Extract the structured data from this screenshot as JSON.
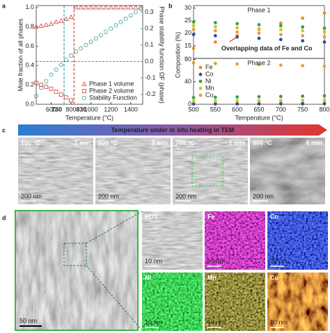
{
  "panel_labels": [
    "a",
    "b",
    "c",
    "d"
  ],
  "chart_data": [
    {
      "type": "scatter",
      "xlabel": "Temperature (°C)",
      "ylabel": "Mole fraction of all phases",
      "y2label": "Phase stability function ΩF (phase)",
      "xlim": [
        450,
        1520
      ],
      "xticks": [
        600,
        800,
        1000,
        1200,
        1400
      ],
      "ylim": [
        0,
        1.02
      ],
      "yticks": [
        {
          "value": 0,
          "label": "0.0"
        },
        0.2,
        0.4,
        0.6,
        0.8,
        {
          "value": 1,
          "label": "1.0"
        }
      ],
      "ycolor": "#c8423a",
      "y2lim": [
        -0.26,
        0.34
      ],
      "y2ticks": [
        -0.2,
        -0.1,
        {
          "value": 0,
          "label": "0.0"
        },
        0.1,
        0.2,
        0.3
      ],
      "y2color": "#3a9a9a",
      "y2_reference": 0,
      "open_markers": true,
      "legend": "lower right",
      "vlines": [
        {
          "value": 830,
          "color": "#c8423a"
        },
        {
          "value": 730,
          "color": "#3a9a9a"
        }
      ],
      "series": [
        {
          "name": "Phase 1 volume",
          "color": "#c8423a",
          "marker": "triangle",
          "x": [
            450,
            500,
            550,
            600,
            650,
            700,
            750,
            800,
            850,
            900,
            950,
            1000,
            1050,
            1100,
            1150,
            1200,
            1250,
            1300,
            1350,
            1400,
            1450,
            1500
          ],
          "values": [
            0.8,
            0.81,
            0.82,
            0.83,
            0.85,
            0.86,
            0.88,
            0.9,
            1,
            1,
            1,
            1,
            1,
            1,
            1,
            1,
            1,
            1,
            1,
            1,
            1,
            1
          ]
        },
        {
          "name": "Phase 2 volume",
          "color": "#c8423a",
          "marker": "square",
          "x": [
            450,
            500,
            550,
            600,
            650,
            700,
            750,
            800
          ],
          "values": [
            0.22,
            0.2,
            0.18,
            0.16,
            0.13,
            0.1,
            0.07,
            0.04
          ]
        },
        {
          "name": "Stability Function",
          "color": "#3a9a9a",
          "marker": "circle",
          "axis": "y2",
          "x": [
            450,
            500,
            550,
            600,
            650,
            700,
            750,
            800,
            850,
            900,
            950,
            1000,
            1050,
            1100,
            1150,
            1200,
            1250,
            1300,
            1350,
            1400,
            1450,
            1500
          ],
          "values": [
            -0.21,
            -0.16,
            -0.12,
            -0.08,
            -0.05,
            -0.02,
            0.01,
            0.035,
            0.06,
            0.08,
            0.1,
            0.12,
            0.14,
            0.16,
            0.18,
            0.2,
            0.22,
            0.24,
            0.26,
            0.28,
            0.3,
            0.32
          ]
        }
      ]
    },
    {
      "type": "scatter",
      "title": "Phase 1",
      "ylabel": "Composition (%)",
      "annotation": "Overlapping data of Fe and Co",
      "x": [
        500,
        550,
        600,
        650,
        700,
        750,
        800
      ],
      "xlim": [
        500,
        800
      ],
      "ylim": [
        10,
        31
      ],
      "yticks": [
        15,
        20,
        25,
        30
      ],
      "series": [
        {
          "color": "#f08a24",
          "values": [
            14,
            16.5,
            19,
            21.5,
            24,
            26,
            28
          ]
        },
        {
          "color": "#2c4fa8",
          "values": [
            19.5,
            19,
            18.5,
            18,
            17.5,
            17,
            16.5
          ]
        },
        {
          "color": "#35a04a",
          "values": [
            24.5,
            24.2,
            23.8,
            23.4,
            23,
            22.5,
            22
          ]
        },
        {
          "color": "#d6c21c",
          "values": [
            23,
            22.6,
            22.2,
            21.8,
            21.4,
            21,
            20.6
          ]
        },
        {
          "color": "#e0a040",
          "values": [
            21.5,
            21,
            20.5,
            20,
            19.5,
            19,
            18.5
          ]
        }
      ]
    },
    {
      "type": "scatter",
      "title": "Phase 2",
      "xlabel": "Temperature (°C)",
      "legend": "upper left",
      "x": [
        500,
        550,
        600,
        650,
        700,
        750,
        800
      ],
      "xlim": [
        500,
        800
      ],
      "xticks": [
        500,
        550,
        600,
        650,
        700,
        750,
        800
      ],
      "ylim": [
        0,
        82
      ],
      "yticks": [
        0,
        40,
        80
      ],
      "series": [
        {
          "name": "Fe",
          "color": "#f08a24",
          "values": [
            1,
            1.2,
            1.4,
            1.6,
            1.8,
            2,
            2.2
          ]
        },
        {
          "name": "Co",
          "color": "#2c4fa8",
          "values": [
            0.5,
            0.5,
            0.6,
            0.6,
            0.7,
            0.7,
            0.8
          ]
        },
        {
          "name": "Ni",
          "color": "#35a04a",
          "values": [
            12,
            12.5,
            13,
            13.5,
            14,
            14.5,
            15
          ]
        },
        {
          "name": "Mn",
          "color": "#d6c21c",
          "values": [
            6,
            6.2,
            6.4,
            6.6,
            6.8,
            7,
            7.2
          ]
        },
        {
          "name": "Cu",
          "color": "#e0a040",
          "values": [
            74,
            73,
            72,
            71,
            70,
            69,
            68
          ]
        }
      ]
    }
  ],
  "panel_c": {
    "banner": "Temperature under in situ heating in TEM",
    "images": [
      {
        "temp": "200 °C",
        "time": "2 min",
        "scale": "200 nm"
      },
      {
        "temp": "600 °C",
        "time": "2 min",
        "scale": "200 nm"
      },
      {
        "temp": "700 °C",
        "time": "2 min",
        "scale": "200 nm"
      },
      {
        "temp": "800 °C",
        "time": "6 min",
        "scale": "200 nm"
      }
    ]
  },
  "panel_d": {
    "main_scale": "50 nm",
    "maps": [
      {
        "label": "EDS",
        "scale": "10 nm"
      },
      {
        "label": "Fe",
        "scale": "10 nm"
      },
      {
        "label": "Co",
        "scale": "10 nm"
      },
      {
        "label": "Ni",
        "scale": "10 nm"
      },
      {
        "label": "Mn",
        "scale": "10 nm"
      },
      {
        "label": "Cu",
        "scale": "10 nm"
      }
    ]
  }
}
